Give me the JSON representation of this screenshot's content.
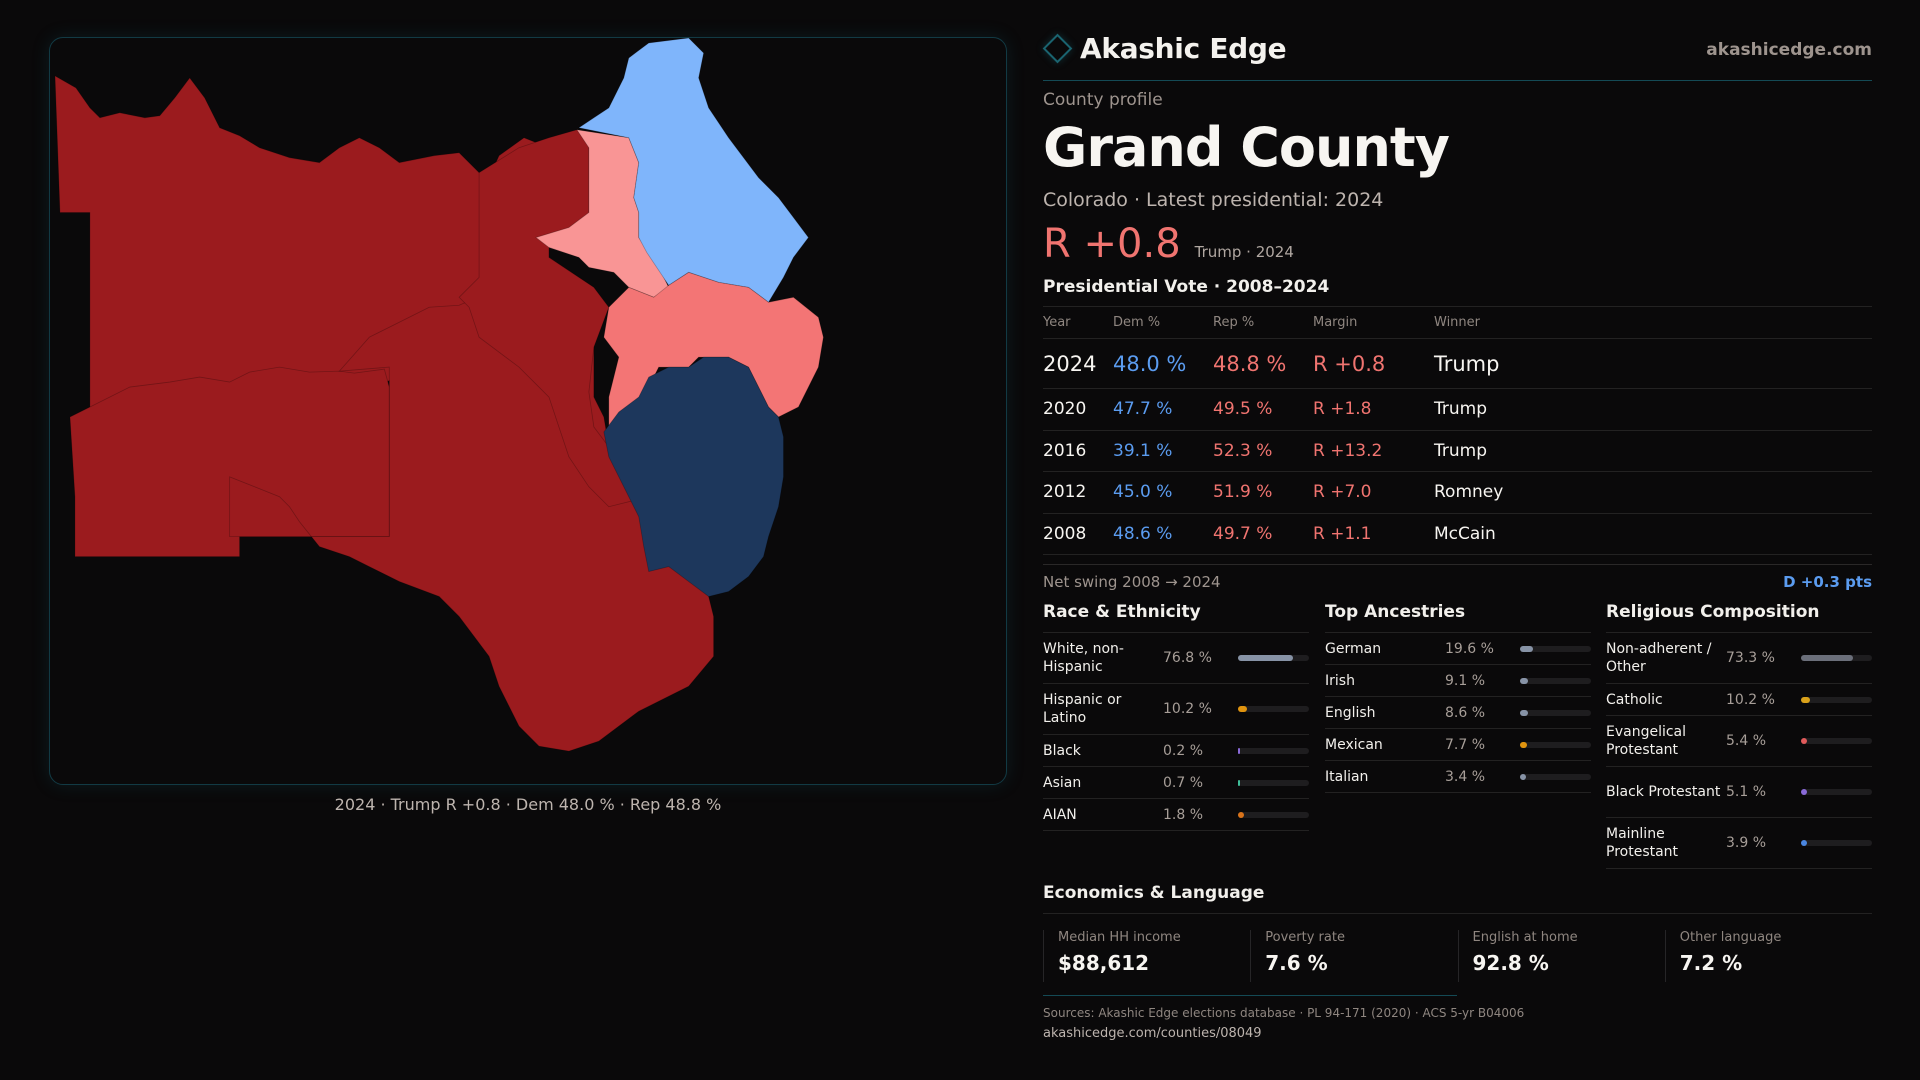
{
  "brand": {
    "name": "Akashic Edge",
    "icon": "diamond-logo-icon",
    "url": "akashicedge.com",
    "accent": "#1a6470"
  },
  "profile": {
    "eyebrow": "County profile",
    "county": "Grand County",
    "subtitle": "Colorado · Latest presidential: 2024",
    "headline_margin": "R +0.8",
    "headline_note": "Trump · 2024"
  },
  "colors": {
    "dem": "#5b9cf0",
    "rep": "#f07470"
  },
  "presidential": {
    "title": "Presidential Vote · 2008–2024",
    "headers": {
      "year": "Year",
      "dem": "Dem %",
      "rep": "Rep %",
      "margin": "Margin",
      "winner": "Winner"
    },
    "rows": [
      {
        "year": "2024",
        "dem": "48.0 %",
        "rep": "48.8 %",
        "margin": "R +0.8",
        "winner": "Trump"
      },
      {
        "year": "2020",
        "dem": "47.7 %",
        "rep": "49.5 %",
        "margin": "R +1.8",
        "winner": "Trump"
      },
      {
        "year": "2016",
        "dem": "39.1 %",
        "rep": "52.3 %",
        "margin": "R +13.2",
        "winner": "Trump"
      },
      {
        "year": "2012",
        "dem": "45.0 %",
        "rep": "51.9 %",
        "margin": "R +7.0",
        "winner": "Romney"
      },
      {
        "year": "2008",
        "dem": "48.6 %",
        "rep": "49.7 %",
        "margin": "R +1.1",
        "winner": "McCain"
      }
    ],
    "swing_label": "Net swing 2008 → 2024",
    "swing_value": "D +0.3 pts"
  },
  "race": {
    "title": "Race & Ethnicity",
    "rows": [
      {
        "label": "White, non-Hispanic",
        "value": "76.8 %",
        "pct": 76.8,
        "color": "#8793a6"
      },
      {
        "label": "Hispanic or Latino",
        "value": "10.2 %",
        "pct": 10.2,
        "color": "#e0940f"
      },
      {
        "label": "Black",
        "value": "0.2 %",
        "pct": 0.2,
        "color": "#8a6ad8"
      },
      {
        "label": "Asian",
        "value": "0.7 %",
        "pct": 0.7,
        "color": "#3fbf9a"
      },
      {
        "label": "AIAN",
        "value": "1.8 %",
        "pct": 1.8,
        "color": "#d9731a"
      }
    ]
  },
  "ancestry": {
    "title": "Top Ancestries",
    "rows": [
      {
        "label": "German",
        "value": "19.6 %",
        "pct": 19.6,
        "color": "#8793a6"
      },
      {
        "label": "Irish",
        "value": "9.1 %",
        "pct": 9.1,
        "color": "#8793a6"
      },
      {
        "label": "English",
        "value": "8.6 %",
        "pct": 8.6,
        "color": "#8793a6"
      },
      {
        "label": "Mexican",
        "value": "7.7 %",
        "pct": 7.7,
        "color": "#e0940f"
      },
      {
        "label": "Italian",
        "value": "3.4 %",
        "pct": 3.4,
        "color": "#8793a6"
      }
    ]
  },
  "religion": {
    "title": "Religious Composition",
    "rows": [
      {
        "label": "Non-adherent / Other",
        "value": "73.3 %",
        "pct": 73.3,
        "color": "#6b6f7a"
      },
      {
        "label": "Catholic",
        "value": "10.2 %",
        "pct": 10.2,
        "color": "#d9a11a"
      },
      {
        "label": "Evangelical Protestant",
        "value": "5.4 %",
        "pct": 5.4,
        "color": "#e05a5a"
      },
      {
        "label": "Black Protestant",
        "value": "5.1 %",
        "pct": 5.1,
        "color": "#8a6ad8"
      },
      {
        "label": "Mainline Protestant",
        "value": "3.9 %",
        "pct": 3.9,
        "color": "#4a86e0"
      }
    ]
  },
  "economics": {
    "title": "Economics & Language",
    "cells": [
      {
        "label": "Median HH income",
        "value": "$88,612"
      },
      {
        "label": "Poverty rate",
        "value": "7.6 %"
      },
      {
        "label": "English at home",
        "value": "92.8 %"
      },
      {
        "label": "Other language",
        "value": "7.2 %"
      }
    ]
  },
  "sources": "Sources: Akashic Edge elections database · PL 94-171 (2020) · ACS 5-yr B04006",
  "source_url": "akashicedge.com/counties/08049",
  "map": {
    "caption": "2024 · Trump R +0.8 · Dem 48.0 % · Rep 48.8 %",
    "precinct_colors": {
      "strong_rep": "#9b1b1e",
      "lean_rep": "#f37575",
      "tilt_rep": "#f99595",
      "lean_dem": "#7fb5fb",
      "strong_dem": "#1d375c"
    }
  }
}
